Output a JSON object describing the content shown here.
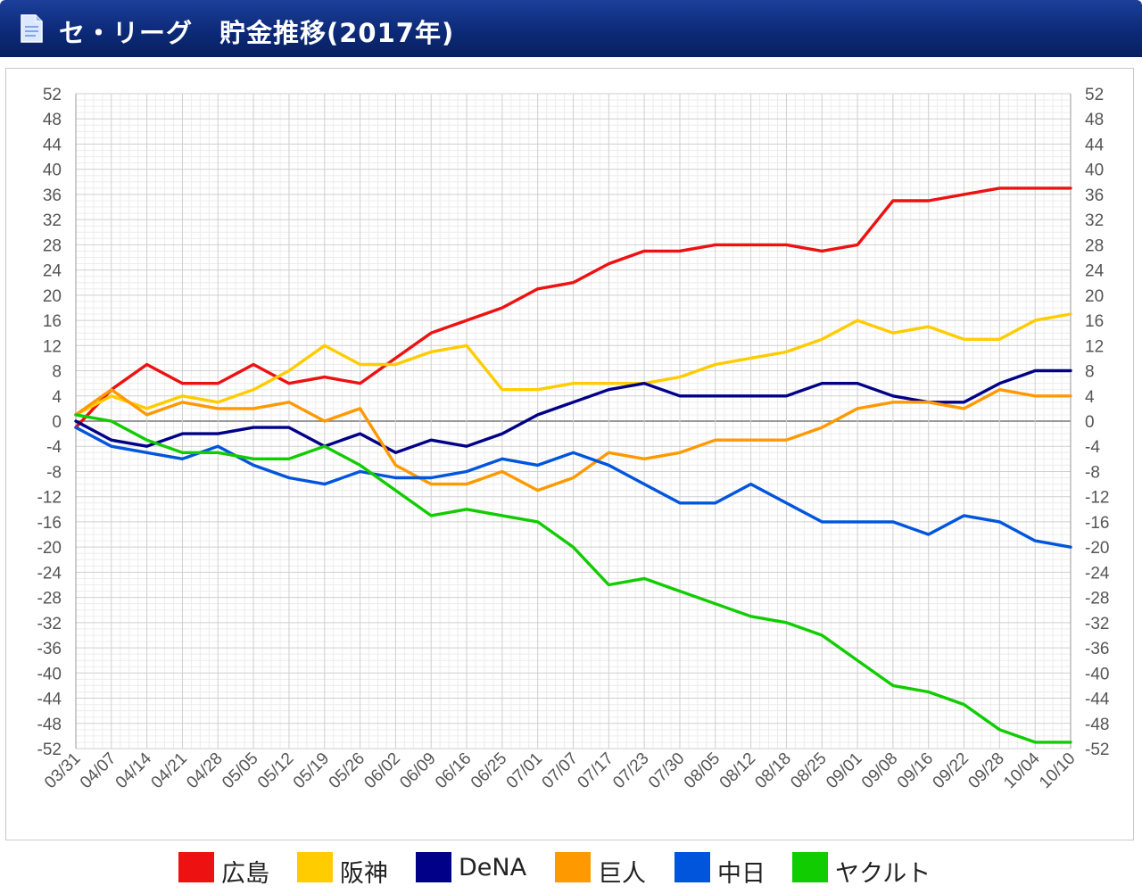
{
  "header": {
    "title": "セ・リーグ　貯金推移(2017年)"
  },
  "chart_data": {
    "type": "line",
    "title": "セ・リーグ　貯金推移(2017年)",
    "xlabel": "",
    "ylabel": "",
    "ylim": [
      -52,
      52
    ],
    "yticks": [
      52,
      48,
      44,
      40,
      36,
      32,
      28,
      24,
      20,
      16,
      12,
      8,
      4,
      0,
      -4,
      -8,
      -12,
      -16,
      -20,
      -24,
      -28,
      -32,
      -36,
      -40,
      -44,
      -48,
      -52
    ],
    "x_tick_labels": [
      "03/31",
      "04/07",
      "04/14",
      "04/21",
      "04/28",
      "05/05",
      "05/12",
      "05/19",
      "05/26",
      "06/02",
      "06/09",
      "06/16",
      "06/25",
      "07/01",
      "07/07",
      "07/17",
      "07/23",
      "07/30",
      "08/05",
      "08/12",
      "08/18",
      "08/25",
      "09/01",
      "09/08",
      "09/16",
      "09/22",
      "09/28",
      "10/04",
      "10/10"
    ],
    "grid": true,
    "dual_y_axis": true,
    "legend_position": "bottom",
    "x_index": [
      0,
      1,
      2,
      3,
      4,
      5,
      6,
      7,
      8,
      9,
      10,
      11,
      12,
      13,
      14,
      15,
      16,
      17,
      18,
      19,
      20,
      21,
      22,
      23,
      24,
      25,
      26,
      27,
      28
    ],
    "series": [
      {
        "name": "広島",
        "color": "#ee1111",
        "values": [
          -1,
          5,
          9,
          6,
          6,
          9,
          6,
          7,
          6,
          10,
          14,
          16,
          18,
          21,
          22,
          25,
          27,
          27,
          28,
          28,
          28,
          27,
          28,
          35,
          35,
          36,
          37,
          37,
          37
        ]
      },
      {
        "name": "阪神",
        "color": "#ffcc00",
        "values": [
          1,
          4,
          2,
          4,
          3,
          5,
          8,
          12,
          9,
          9,
          11,
          12,
          5,
          5,
          6,
          6,
          6,
          7,
          9,
          10,
          11,
          13,
          16,
          14,
          15,
          13,
          13,
          16,
          17
        ]
      },
      {
        "name": "DeNA",
        "color": "#000088",
        "values": [
          0,
          -3,
          -4,
          -2,
          -2,
          -1,
          -1,
          -4,
          -2,
          -5,
          -3,
          -4,
          -2,
          1,
          3,
          5,
          6,
          4,
          4,
          4,
          4,
          6,
          6,
          4,
          3,
          3,
          6,
          8,
          8
        ]
      },
      {
        "name": "巨人",
        "color": "#ff9900",
        "values": [
          1,
          5,
          1,
          3,
          2,
          2,
          3,
          0,
          2,
          -7,
          -10,
          -10,
          -8,
          -11,
          -9,
          -5,
          -6,
          -5,
          -3,
          -3,
          -3,
          -1,
          2,
          3,
          3,
          2,
          5,
          4,
          4
        ]
      },
      {
        "name": "中日",
        "color": "#0055dd",
        "values": [
          -1,
          -4,
          -5,
          -6,
          -4,
          -7,
          -9,
          -10,
          -8,
          -9,
          -9,
          -8,
          -6,
          -7,
          -5,
          -7,
          -10,
          -13,
          -13,
          -10,
          -13,
          -16,
          -16,
          -16,
          -18,
          -15,
          -16,
          -19,
          -20
        ]
      },
      {
        "name": "ヤクルト",
        "color": "#11cc00",
        "values": [
          1,
          0,
          -3,
          -5,
          -5,
          -6,
          -6,
          -4,
          -7,
          -11,
          -15,
          -14,
          -15,
          -16,
          -20,
          -26,
          -25,
          -27,
          -29,
          -31,
          -32,
          -34,
          -38,
          -42,
          -43,
          -45,
          -49,
          -51,
          -51
        ]
      }
    ]
  }
}
